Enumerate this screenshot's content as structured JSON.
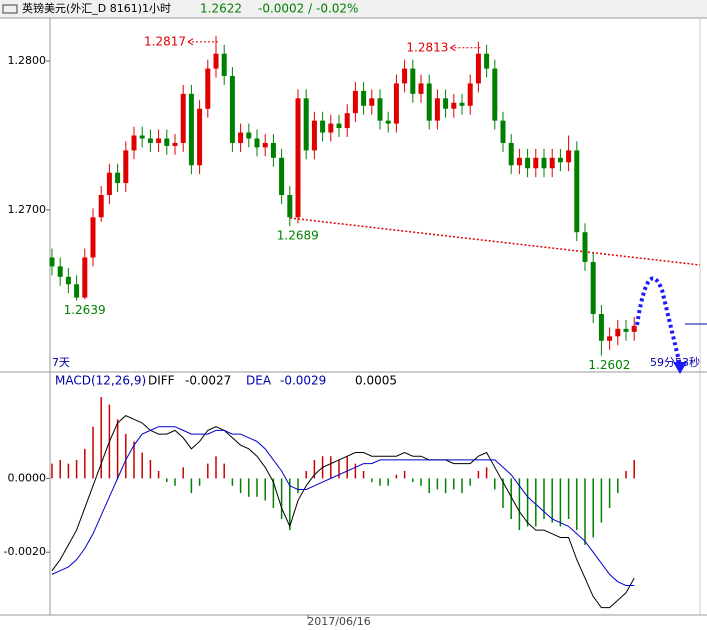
{
  "chart_data": [
    {
      "type": "candlestick",
      "title": "英镑美元(外汇_D 8161)1小时",
      "change": "-0.0002 / -0.02%",
      "period_label": "7天",
      "countdown": "59分53秒",
      "up_color": "#e00000",
      "down_color": "#008000",
      "ylim": [
        1.2591,
        1.2829
      ],
      "yticks": [
        {
          "value": 1.27,
          "label": "1.2700"
        },
        {
          "value": 1.28,
          "label": "1.2800"
        }
      ],
      "open": [
        1.2668,
        1.2662,
        1.2655,
        1.265,
        1.2641,
        1.2668,
        1.2695,
        1.271,
        1.2725,
        1.2718,
        1.274,
        1.275,
        1.2748,
        1.2745,
        1.2748,
        1.2743,
        1.2745,
        1.2778,
        1.273,
        1.2768,
        1.2795,
        1.2805,
        1.279,
        1.2745,
        1.2752,
        1.2748,
        1.2742,
        1.2745,
        1.2735,
        1.271,
        1.2695,
        1.2775,
        1.274,
        1.276,
        1.2752,
        1.2758,
        1.2755,
        1.2765,
        1.278,
        1.277,
        1.2775,
        1.276,
        1.2758,
        1.2785,
        1.2795,
        1.2778,
        1.2785,
        1.276,
        1.2775,
        1.2768,
        1.2772,
        1.277,
        1.2785,
        1.2805,
        1.2795,
        1.276,
        1.2745,
        1.273,
        1.2735,
        1.2728,
        1.2735,
        1.2728,
        1.2735,
        1.2732,
        1.274,
        1.2685,
        1.2665,
        1.263,
        1.2612,
        1.2615,
        1.262,
        1.2618
      ],
      "high": [
        1.2674,
        1.2668,
        1.2661,
        1.2656,
        1.2674,
        1.2701,
        1.2716,
        1.2731,
        1.2731,
        1.2746,
        1.2756,
        1.2756,
        1.2754,
        1.2754,
        1.2754,
        1.2751,
        1.2784,
        1.2784,
        1.2774,
        1.2801,
        1.2817,
        1.2811,
        1.2796,
        1.2758,
        1.2758,
        1.2754,
        1.2751,
        1.2751,
        1.2741,
        1.2716,
        1.2781,
        1.2781,
        1.2766,
        1.2766,
        1.2764,
        1.2764,
        1.2771,
        1.2786,
        1.2786,
        1.2781,
        1.2781,
        1.2766,
        1.2791,
        1.2801,
        1.2801,
        1.2791,
        1.2791,
        1.2781,
        1.2781,
        1.2778,
        1.2778,
        1.2791,
        1.2813,
        1.2811,
        1.2801,
        1.2766,
        1.2751,
        1.2741,
        1.2741,
        1.2741,
        1.2741,
        1.2741,
        1.2741,
        1.275,
        1.2746,
        1.2691,
        1.2671,
        1.2636,
        1.2621,
        1.2626,
        1.2626,
        1.2628
      ],
      "low": [
        1.2656,
        1.2649,
        1.2644,
        1.2639,
        1.264,
        1.2662,
        1.2692,
        1.2704,
        1.2712,
        1.2712,
        1.2734,
        1.2742,
        1.2739,
        1.2739,
        1.2737,
        1.2737,
        1.2739,
        1.2724,
        1.2724,
        1.2762,
        1.2789,
        1.2784,
        1.2739,
        1.2739,
        1.2742,
        1.2736,
        1.2736,
        1.2729,
        1.2704,
        1.2689,
        1.2691,
        1.2734,
        1.2734,
        1.2746,
        1.2746,
        1.2749,
        1.2749,
        1.2759,
        1.2764,
        1.2764,
        1.2754,
        1.2752,
        1.2752,
        1.2779,
        1.2772,
        1.2772,
        1.2754,
        1.2754,
        1.2762,
        1.2762,
        1.2764,
        1.2764,
        1.2779,
        1.2789,
        1.2754,
        1.2739,
        1.2724,
        1.2724,
        1.2722,
        1.2722,
        1.2722,
        1.2722,
        1.2726,
        1.2726,
        1.2679,
        1.2659,
        1.2624,
        1.2602,
        1.2606,
        1.2609,
        1.2612,
        1.2612
      ],
      "close": [
        1.2662,
        1.2655,
        1.265,
        1.2641,
        1.2668,
        1.2695,
        1.271,
        1.2725,
        1.2718,
        1.274,
        1.275,
        1.2748,
        1.2745,
        1.2748,
        1.2743,
        1.2745,
        1.2778,
        1.273,
        1.2768,
        1.2795,
        1.2805,
        1.279,
        1.2745,
        1.2752,
        1.2748,
        1.2742,
        1.2745,
        1.2735,
        1.271,
        1.2695,
        1.2775,
        1.274,
        1.276,
        1.2752,
        1.2758,
        1.2755,
        1.2765,
        1.278,
        1.277,
        1.2775,
        1.276,
        1.2758,
        1.2785,
        1.2795,
        1.2778,
        1.2785,
        1.276,
        1.2775,
        1.2768,
        1.2772,
        1.277,
        1.2785,
        1.2805,
        1.2795,
        1.276,
        1.2745,
        1.273,
        1.2735,
        1.2728,
        1.2735,
        1.2728,
        1.2735,
        1.2732,
        1.274,
        1.2685,
        1.2665,
        1.263,
        1.2612,
        1.2615,
        1.262,
        1.2618,
        1.2622
      ]
    },
    {
      "type": "macd",
      "title": "MACD(12,26,9)",
      "categories": [
        null,
        null,
        null,
        null,
        null,
        null,
        null,
        null,
        null,
        null,
        null,
        null,
        null,
        null,
        null,
        null,
        null,
        null,
        null,
        null,
        null,
        null,
        null,
        null,
        null,
        null,
        null,
        null,
        null,
        null,
        null,
        null,
        null,
        null,
        null,
        "2017/06/16",
        null,
        null,
        null,
        null,
        null,
        null,
        null,
        null,
        null,
        null,
        null,
        null,
        null,
        null,
        null,
        null,
        null,
        null,
        null,
        null,
        null,
        null,
        null,
        null,
        null,
        null,
        null,
        null,
        null,
        null,
        null,
        null,
        null,
        null,
        null,
        null
      ],
      "ylim": [
        -0.0037,
        0.0028
      ],
      "yticks": [
        {
          "value": -0.002,
          "label": "-0.0020"
        },
        {
          "value": 0,
          "label": "0.0000"
        }
      ],
      "hist_up_color": "#cc0000",
      "hist_down_color": "#008000",
      "histogram": [
        0.0004,
        0.0005,
        0.0004,
        0.0005,
        0.0008,
        0.0014,
        0.0022,
        0.002,
        0.0016,
        0.0012,
        0.001,
        0.0007,
        0.0005,
        0.0002,
        -0.0001,
        -0.0002,
        0.0003,
        -0.0004,
        -0.0002,
        0.0004,
        0.0006,
        0.0004,
        -0.0002,
        -0.0004,
        -0.0005,
        -0.0005,
        -0.0006,
        -0.0008,
        -0.0011,
        -0.0014,
        -0.0004,
        0.0002,
        0.0005,
        0.0006,
        0.0006,
        0.0005,
        0.0006,
        0.0004,
        0.0002,
        -0.0001,
        -0.0002,
        -0.0002,
        0.0001,
        0.0002,
        -0.0001,
        -0.0002,
        -0.0004,
        -0.0003,
        -0.0004,
        -0.0003,
        -0.0004,
        -0.0002,
        0.0002,
        0.0003,
        -0.0003,
        -0.0008,
        -0.0011,
        -0.0014,
        -0.0013,
        -0.0013,
        -0.0011,
        -0.0012,
        -0.0013,
        -0.0011,
        -0.0014,
        -0.0018,
        -0.0016,
        -0.0012,
        -0.0008,
        -0.0004,
        0.0002,
        0.0005
      ],
      "series": [
        {
          "name": "DIFF",
          "color": "#000000",
          "values": [
            -0.0025,
            -0.0022,
            -0.0018,
            -0.0014,
            -0.0008,
            -0.0002,
            0.0004,
            0.001,
            0.0015,
            0.0017,
            0.0016,
            0.0015,
            0.0013,
            0.0012,
            0.0012,
            0.0013,
            0.0011,
            0.0008,
            0.001,
            0.0013,
            0.0014,
            0.0013,
            0.0011,
            0.0009,
            0.0008,
            0.0006,
            0.0003,
            -0.0001,
            -0.0008,
            -0.0013,
            -0.0006,
            -0.0002,
            0.0001,
            0.0003,
            0.0004,
            0.0005,
            0.0006,
            0.0007,
            0.0007,
            0.0006,
            0.0006,
            0.0006,
            0.0006,
            0.0007,
            0.0006,
            0.0006,
            0.0005,
            0.0005,
            0.0005,
            0.0004,
            0.0004,
            0.0004,
            0.0006,
            0.0007,
            0.0003,
            -0.0001,
            -0.0005,
            -0.0009,
            -0.0012,
            -0.0014,
            -0.0014,
            -0.0015,
            -0.0016,
            -0.0016,
            -0.0022,
            -0.0027,
            -0.0032,
            -0.0035,
            -0.0035,
            -0.0033,
            -0.0031,
            -0.0027
          ]
        },
        {
          "name": "DEA",
          "color": "#0000cc",
          "values": [
            -0.0026,
            -0.0025,
            -0.0024,
            -0.0022,
            -0.0019,
            -0.0015,
            -0.001,
            -0.0005,
            0.0,
            0.0005,
            0.0009,
            0.0012,
            0.0013,
            0.0014,
            0.0014,
            0.0014,
            0.0013,
            0.0012,
            0.0012,
            0.0012,
            0.0013,
            0.0013,
            0.0012,
            0.0012,
            0.0011,
            0.001,
            0.0008,
            0.0005,
            0.0002,
            -0.0002,
            -0.0003,
            -0.0003,
            -0.0002,
            -0.0001,
            0.0,
            0.0001,
            0.0002,
            0.0003,
            0.0004,
            0.0004,
            0.0005,
            0.0005,
            0.0005,
            0.0005,
            0.0005,
            0.0005,
            0.0005,
            0.0005,
            0.0005,
            0.0005,
            0.0005,
            0.0005,
            0.0005,
            0.0005,
            0.0005,
            0.0003,
            0.0001,
            -0.0002,
            -0.0005,
            -0.0007,
            -0.0009,
            -0.0011,
            -0.0012,
            -0.0013,
            -0.0015,
            -0.0017,
            -0.002,
            -0.0023,
            -0.0026,
            -0.0028,
            -0.0029,
            -0.0029
          ]
        }
      ]
    }
  ]
}
